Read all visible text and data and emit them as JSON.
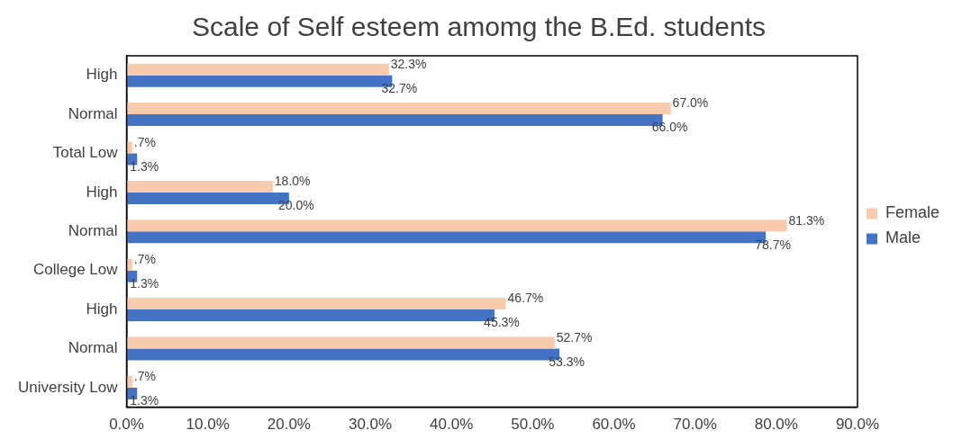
{
  "chart_data": {
    "type": "bar",
    "orientation": "horizontal",
    "title": "Scale of Self esteem amomg the B.Ed. students",
    "categories": [
      "High",
      "Normal",
      "Total Low",
      "High",
      "Normal",
      "College Low",
      "High",
      "Normal",
      "University Low"
    ],
    "series": [
      {
        "name": "Female",
        "color": "#f8cbad",
        "values": [
          32.3,
          67.0,
          0.7,
          18.0,
          81.3,
          0.7,
          46.7,
          52.7,
          0.7
        ],
        "value_labels": [
          "32.3%",
          "67.0%",
          ".7%",
          "18.0%",
          "81.3%",
          ".7%",
          "46.7%",
          "52.7%",
          ".7%"
        ]
      },
      {
        "name": "Male",
        "color": "#4472c4",
        "values": [
          32.7,
          66.0,
          1.3,
          20.0,
          78.7,
          1.3,
          45.3,
          53.3,
          1.3
        ],
        "value_labels": [
          "32.7%",
          "66.0%",
          "1.3%",
          "20.0%",
          "78.7%",
          "1.3%",
          "45.3%",
          "53.3%",
          "1.3%"
        ]
      }
    ],
    "xlim": [
      0,
      90
    ],
    "xticks": [
      {
        "value": 0,
        "label": "0.0%"
      },
      {
        "value": 10,
        "label": "10.0%"
      },
      {
        "value": 20,
        "label": "20.0%"
      },
      {
        "value": 30,
        "label": "30.0%"
      },
      {
        "value": 40,
        "label": "40.0%"
      },
      {
        "value": 50,
        "label": "50.0%"
      },
      {
        "value": 60,
        "label": "60.0%"
      },
      {
        "value": 70,
        "label": "70.0%"
      },
      {
        "value": 80,
        "label": "80.0%"
      },
      {
        "value": 90,
        "label": "90.0%"
      }
    ],
    "grid": false,
    "legend": "right"
  }
}
